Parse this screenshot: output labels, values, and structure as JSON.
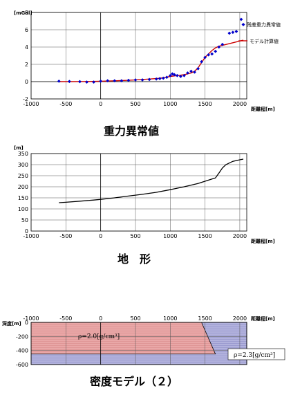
{
  "chart_data": [
    {
      "type": "scatter",
      "title": "重力異常値",
      "xlabel": "距離程[m]",
      "ylabel": "[mGal]",
      "xlim": [
        -1000,
        2100
      ],
      "ylim": [
        -2,
        8
      ],
      "xticks": [
        "-1000",
        "-500",
        "0",
        "500",
        "1000",
        "1500",
        "2000"
      ],
      "yticks": [
        "-2",
        "0",
        "2",
        "4",
        "6",
        "8"
      ],
      "grid": true,
      "legend_position": "right",
      "series": [
        {
          "name": "残差重力異常値",
          "color": "#0000cc",
          "marker": "diamond",
          "x": [
            -600,
            -450,
            -300,
            -200,
            -100,
            0,
            100,
            200,
            300,
            400,
            500,
            600,
            700,
            800,
            850,
            900,
            950,
            1000,
            1030,
            1060,
            1100,
            1150,
            1200,
            1250,
            1300,
            1350,
            1400,
            1450,
            1500,
            1550,
            1600,
            1650,
            1700,
            1750,
            1850,
            1900,
            1950,
            2020
          ],
          "y": [
            0.05,
            0.02,
            0.0,
            -0.05,
            -0.05,
            0.05,
            0.1,
            0.1,
            0.1,
            0.15,
            0.2,
            0.2,
            0.25,
            0.3,
            0.35,
            0.4,
            0.5,
            0.7,
            0.9,
            0.8,
            0.7,
            0.6,
            0.7,
            1.0,
            1.2,
            1.1,
            1.5,
            2.3,
            2.8,
            3.1,
            3.2,
            3.5,
            4.0,
            4.3,
            5.6,
            5.7,
            5.8,
            7.2
          ]
        },
        {
          "name": "モデル計算値",
          "color": "#cc0000",
          "line": true,
          "x": [
            -600,
            -400,
            -200,
            0,
            200,
            400,
            600,
            800,
            900,
            1000,
            1100,
            1200,
            1300,
            1350,
            1400,
            1450,
            1500,
            1550,
            1600,
            1650,
            1700,
            1800,
            1900,
            2000,
            2050
          ],
          "y": [
            0.0,
            0.0,
            0.02,
            0.05,
            0.1,
            0.15,
            0.25,
            0.35,
            0.45,
            0.6,
            0.7,
            0.8,
            1.0,
            1.2,
            1.6,
            2.2,
            2.8,
            3.2,
            3.6,
            3.9,
            4.1,
            4.3,
            4.5,
            4.7,
            4.8
          ]
        }
      ]
    },
    {
      "type": "line",
      "title": "地　形",
      "xlabel": "距離程[m]",
      "ylabel": "[m]",
      "xlim": [
        -1000,
        2100
      ],
      "ylim": [
        0,
        350
      ],
      "xticks": [
        "-1000",
        "-500",
        "0",
        "500",
        "1000",
        "1500",
        "2000"
      ],
      "yticks": [
        "0",
        "50",
        "100",
        "150",
        "200",
        "250",
        "300",
        "350"
      ],
      "grid": true,
      "series": [
        {
          "color": "#000000",
          "x": [
            -600,
            -500,
            -300,
            -100,
            0,
            200,
            400,
            600,
            800,
            1000,
            1200,
            1400,
            1500,
            1600,
            1650,
            1700,
            1750,
            1800,
            1900,
            2000,
            2050
          ],
          "y": [
            128,
            130,
            135,
            140,
            143,
            150,
            158,
            166,
            175,
            187,
            200,
            215,
            225,
            235,
            240,
            262,
            285,
            300,
            315,
            322,
            325
          ]
        }
      ]
    },
    {
      "type": "area",
      "title": "密度モデル（２）",
      "xlabel": "距離程[m]",
      "ylabel": "深度[m]",
      "xlim": [
        -1000,
        2100
      ],
      "ylim": [
        -600,
        0
      ],
      "xticks": [
        "-1000",
        "-500",
        "0",
        "500",
        "1000",
        "1500",
        "2000"
      ],
      "yticks": [
        "0",
        "-200",
        "-400",
        "-600"
      ],
      "grid": true,
      "regions": [
        {
          "name": "ρ=2.0[g/cm³]",
          "color": "#e8a8a8",
          "polygon": [
            [
              -1000,
              0
            ],
            [
              1450,
              0
            ],
            [
              1650,
              -450
            ],
            [
              -1000,
              -450
            ]
          ]
        },
        {
          "name": "ρ=2.3[g/cm³]",
          "color": "#b0b0dc",
          "polygon": [
            [
              1450,
              0
            ],
            [
              2100,
              0
            ],
            [
              2100,
              -600
            ],
            [
              -1000,
              -600
            ],
            [
              -1000,
              -450
            ],
            [
              1650,
              -450
            ]
          ]
        }
      ]
    }
  ]
}
